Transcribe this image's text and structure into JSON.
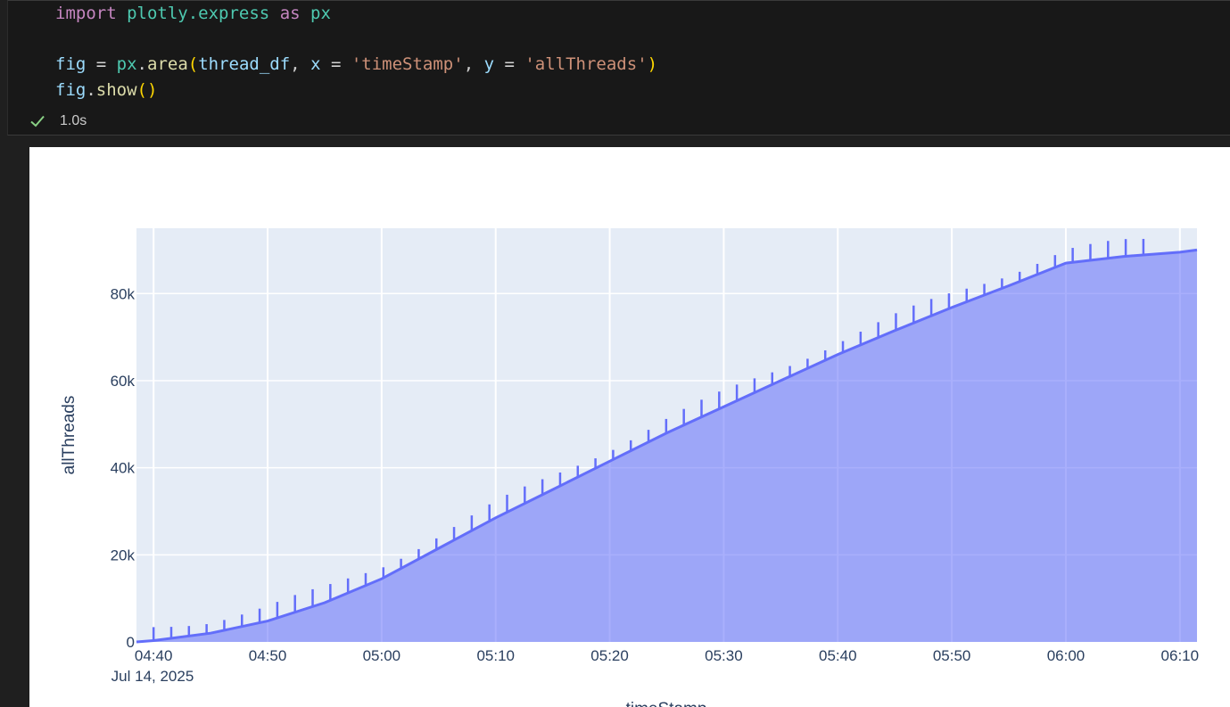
{
  "code": {
    "line1": {
      "kw": "import",
      "module": "plotly.express",
      "as": "as",
      "alias": "px"
    },
    "line2": {
      "var": "fig",
      "eq": " = ",
      "mod": "px",
      "fn": "area",
      "arg1": "thread_df",
      "xkw": "x",
      "xval": "'timeStamp'",
      "ykw": "y",
      "yval": "'allThreads'"
    },
    "line3": {
      "var": "fig",
      "fn": "show"
    }
  },
  "status": {
    "icon": "check-icon",
    "time": "1.0s",
    "color": "#89d185"
  },
  "chart_data": {
    "type": "area",
    "title": "",
    "xlabel": "timeStamp",
    "ylabel": "allThreads",
    "x_ticks": [
      "04:40",
      "04:50",
      "05:00",
      "05:10",
      "05:20",
      "05:30",
      "05:40",
      "05:50",
      "06:00",
      "06:10"
    ],
    "x_date_label": "Jul 14, 2025",
    "y_ticks": [
      "0",
      "20k",
      "40k",
      "60k",
      "80k"
    ],
    "xlim_minutes_since_0440": [
      -1.5,
      91.5
    ],
    "ylim": [
      0,
      95000
    ],
    "grid": true,
    "colors": {
      "line": "#636efa",
      "fill": "rgba(99,110,250,0.5)",
      "plot_bg": "#e5ecf6"
    },
    "series": [
      {
        "name": "allThreads",
        "x_minutes": [
          -1.5,
          0,
          5,
          10,
          15,
          20,
          25,
          30,
          35,
          40,
          45,
          50,
          55,
          60,
          65,
          70,
          75,
          80,
          85,
          90,
          91.5
        ],
        "values": [
          0,
          300,
          2000,
          4800,
          9000,
          14500,
          21500,
          28500,
          35000,
          41500,
          48000,
          54000,
          60000,
          66000,
          71500,
          76800,
          81800,
          87000,
          88500,
          89500,
          90000
        ]
      }
    ]
  }
}
